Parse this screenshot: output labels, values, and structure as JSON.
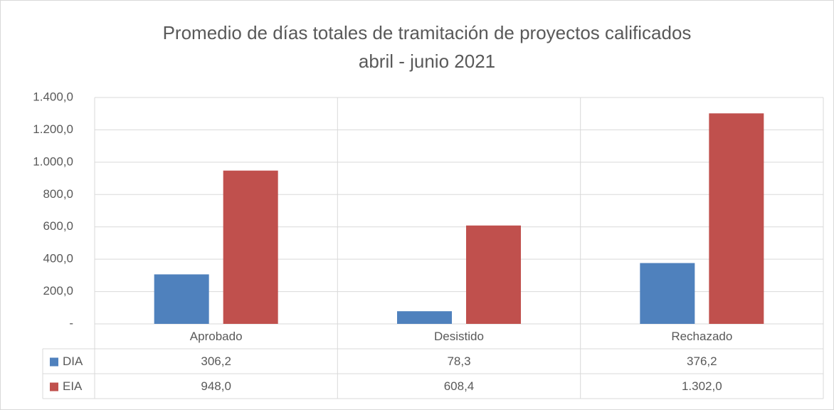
{
  "chart_data": {
    "type": "bar",
    "title": "Promedio de días totales de tramitación de proyectos calificados",
    "subtitle": "abril - junio 2021",
    "categories": [
      "Aprobado",
      "Desistido",
      "Rechazado"
    ],
    "series": [
      {
        "name": "DIA",
        "color": "#4f81bd",
        "values": [
          306.2,
          78.3,
          376.2
        ],
        "value_labels": [
          "306,2",
          "78,3",
          "376,2"
        ]
      },
      {
        "name": "EIA",
        "color": "#c0504d",
        "values": [
          948.0,
          608.4,
          1302.0
        ],
        "value_labels": [
          "948,0",
          "608,4",
          "1.302,0"
        ]
      }
    ],
    "ylim": [
      0,
      1400
    ],
    "yticks": [
      {
        "value": 0,
        "label": "-"
      },
      {
        "value": 200,
        "label": "200,0"
      },
      {
        "value": 400,
        "label": "400,0"
      },
      {
        "value": 600,
        "label": "600,0"
      },
      {
        "value": 800,
        "label": "800,0"
      },
      {
        "value": 1000,
        "label": "1.000,0"
      },
      {
        "value": 1200,
        "label": "1.200,0"
      },
      {
        "value": 1400,
        "label": "1.400,0"
      }
    ],
    "grid": true
  }
}
